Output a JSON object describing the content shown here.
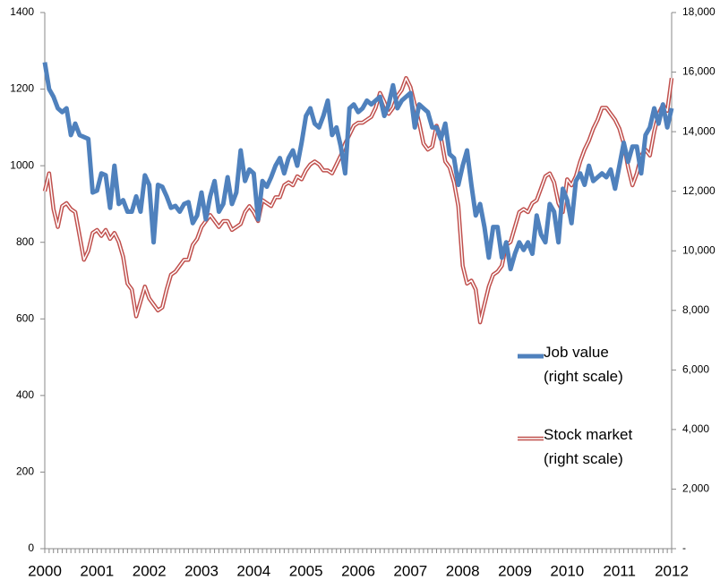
{
  "chart_data": {
    "type": "line",
    "categories": [
      "2000",
      null,
      null,
      null,
      null,
      null,
      null,
      null,
      null,
      null,
      null,
      null,
      "2001",
      null,
      null,
      null,
      null,
      null,
      null,
      null,
      null,
      null,
      null,
      null,
      "2002",
      null,
      null,
      null,
      null,
      null,
      null,
      null,
      null,
      null,
      null,
      null,
      "2003",
      null,
      null,
      null,
      null,
      null,
      null,
      null,
      null,
      null,
      null,
      null,
      "2004",
      null,
      null,
      null,
      null,
      null,
      null,
      null,
      null,
      null,
      null,
      null,
      "2005",
      null,
      null,
      null,
      null,
      null,
      null,
      null,
      null,
      null,
      null,
      null,
      "2006",
      null,
      null,
      null,
      null,
      null,
      null,
      null,
      null,
      null,
      null,
      null,
      "2007",
      null,
      null,
      null,
      null,
      null,
      null,
      null,
      null,
      null,
      null,
      null,
      "2008",
      null,
      null,
      null,
      null,
      null,
      null,
      null,
      null,
      null,
      null,
      null,
      "2009",
      null,
      null,
      null,
      null,
      null,
      null,
      null,
      null,
      null,
      null,
      null,
      "2010",
      null,
      null,
      null,
      null,
      null,
      null,
      null,
      null,
      null,
      null,
      null,
      "2011",
      null,
      null,
      null,
      null,
      null,
      null,
      null,
      null,
      null,
      null,
      null,
      "2012"
    ],
    "series": [
      {
        "name": "Job value (right scale)",
        "color": "#4f81bd",
        "style": "thick",
        "values": [
          1270,
          1200,
          1180,
          1150,
          1140,
          1150,
          1080,
          1110,
          1080,
          1075,
          1070,
          930,
          935,
          980,
          975,
          890,
          1000,
          900,
          910,
          880,
          880,
          920,
          880,
          975,
          950,
          800,
          950,
          945,
          920,
          890,
          895,
          880,
          900,
          905,
          850,
          870,
          930,
          860,
          920,
          960,
          880,
          900,
          970,
          900,
          930,
          1040,
          960,
          990,
          980,
          860,
          960,
          945,
          970,
          1000,
          1020,
          980,
          1020,
          1040,
          1000,
          1060,
          1130,
          1150,
          1110,
          1100,
          1130,
          1170,
          1080,
          1100,
          1050,
          980,
          1150,
          1160,
          1140,
          1150,
          1170,
          1160,
          1170,
          1180,
          1130,
          1160,
          1210,
          1150,
          1170,
          1180,
          1190,
          1100,
          1160,
          1150,
          1140,
          1100,
          1100,
          1070,
          1110,
          1030,
          1020,
          950,
          1000,
          1040,
          950,
          870,
          900,
          840,
          760,
          840,
          840,
          760,
          800,
          730,
          770,
          800,
          780,
          800,
          770,
          870,
          820,
          800,
          900,
          880,
          800,
          940,
          910,
          850,
          960,
          980,
          950,
          1000,
          960,
          970,
          980,
          970,
          990,
          940,
          1000,
          1060,
          1010,
          1050,
          1050,
          980,
          1080,
          1100,
          1150,
          1110,
          1160,
          1100,
          1150
        ]
      },
      {
        "name": "Stock market (right scale)",
        "color": "#c0504d",
        "style": "double",
        "axis": "y2",
        "values": [
          12000,
          12600,
          11400,
          10800,
          11500,
          11600,
          11400,
          11300,
          10500,
          9700,
          10000,
          10600,
          10700,
          10500,
          10700,
          10400,
          10600,
          10300,
          9800,
          8900,
          8700,
          7800,
          8300,
          8800,
          8400,
          8200,
          8000,
          8100,
          8700,
          9200,
          9300,
          9500,
          9700,
          9700,
          10200,
          10400,
          10800,
          11000,
          11200,
          11000,
          10800,
          11000,
          11000,
          10700,
          10800,
          10900,
          11300,
          11500,
          11300,
          11000,
          11700,
          11600,
          11500,
          11800,
          11800,
          12200,
          12300,
          12200,
          12500,
          12400,
          12700,
          12900,
          13000,
          12900,
          12700,
          12700,
          12600,
          12900,
          13200,
          13600,
          13900,
          14200,
          14300,
          14300,
          14400,
          14500,
          14800,
          15300,
          15000,
          14600,
          14800,
          15200,
          15400,
          15800,
          15500,
          14900,
          14300,
          13600,
          13400,
          13500,
          14200,
          13800,
          13000,
          12800,
          12300,
          11500,
          9500,
          8900,
          9000,
          8700,
          7600,
          8200,
          8800,
          9200,
          9300,
          9500,
          10200,
          10300,
          10800,
          11300,
          11400,
          11300,
          11600,
          11700,
          12100,
          12500,
          12600,
          12300,
          11600,
          11300,
          12400,
          12200,
          12500,
          13000,
          13400,
          13700,
          14100,
          14400,
          14800,
          14800,
          14600,
          14400,
          14100,
          13600,
          12800,
          12200,
          12600,
          13200,
          13400,
          13200,
          14000,
          14600,
          14900,
          14700,
          15800
        ]
      }
    ],
    "ylim": [
      0,
      1400
    ],
    "yticks": [
      0,
      200,
      400,
      600,
      800,
      1000,
      1200,
      1400
    ],
    "y2lim": [
      0,
      18000
    ],
    "y2ticks": [
      {
        "value": 0,
        "label": "-"
      },
      {
        "value": 2000,
        "label": "2,000"
      },
      {
        "value": 4000,
        "label": "4,000"
      },
      {
        "value": 6000,
        "label": "6,000"
      },
      {
        "value": 8000,
        "label": "8,000"
      },
      {
        "value": 10000,
        "label": "10,000"
      },
      {
        "value": 12000,
        "label": "12,000"
      },
      {
        "value": 14000,
        "label": "14,000"
      },
      {
        "value": 16000,
        "label": "16,000"
      },
      {
        "value": 18000,
        "label": "18,000"
      }
    ],
    "grid": false
  }
}
